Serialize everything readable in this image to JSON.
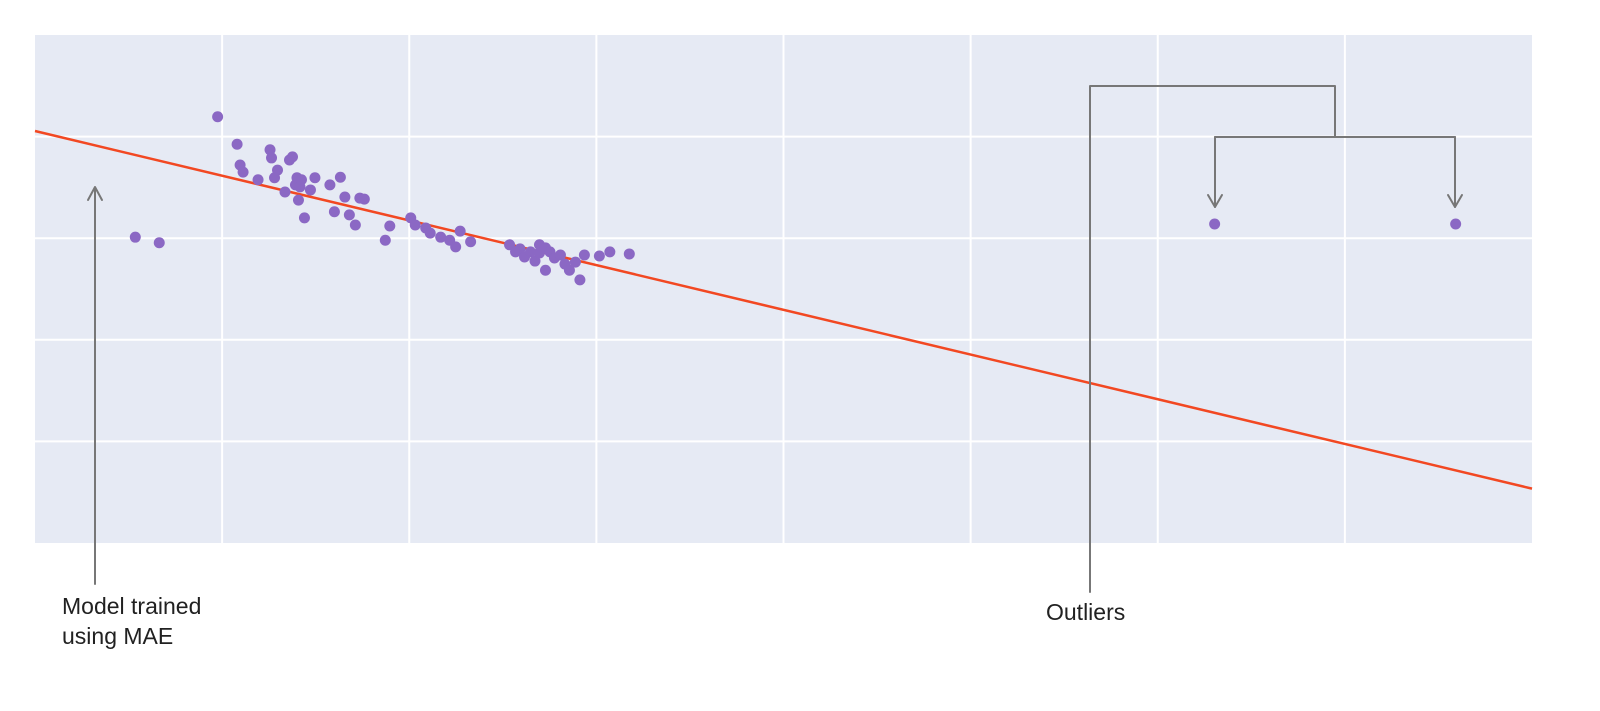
{
  "chart_data": {
    "type": "scatter",
    "title": "",
    "coordinate_note": "No axis ticks, tick labels or axis titles are visible in the figure; point coordinates below are expressed as percent of the plot area (x: 0 = left edge to 100 = right edge, y: 0 = bottom edge to 100 = top edge).",
    "x_axis": {
      "label": "",
      "tick_labels": []
    },
    "y_axis": {
      "label": "",
      "tick_labels": []
    },
    "plot_bg": "#e6eaf4",
    "grid": {
      "on": true,
      "color": "#ffffff",
      "x": [
        12.5,
        25,
        37.5,
        50,
        62.5,
        75,
        87.5
      ],
      "y": [
        20,
        40,
        60,
        80
      ]
    },
    "regression_line": {
      "name": "regression-line",
      "color": "#f24822",
      "from": [
        0,
        81.1
      ],
      "to": [
        100,
        10.7
      ]
    },
    "series": [
      {
        "name": "scatter-point",
        "color": "#8b68c4",
        "radius": 5.5,
        "points": [
          [
            12.2,
            83.9
          ],
          [
            6.7,
            60.2
          ],
          [
            8.3,
            59.1
          ],
          [
            13.5,
            78.5
          ],
          [
            13.7,
            74.4
          ],
          [
            13.9,
            73.0
          ],
          [
            14.9,
            71.5
          ],
          [
            15.7,
            77.4
          ],
          [
            15.8,
            75.8
          ],
          [
            16.0,
            71.9
          ],
          [
            16.2,
            73.4
          ],
          [
            16.7,
            69.1
          ],
          [
            17.0,
            75.4
          ],
          [
            17.2,
            76.0
          ],
          [
            17.4,
            70.5
          ],
          [
            17.5,
            71.9
          ],
          [
            17.6,
            67.5
          ],
          [
            17.7,
            70.1
          ],
          [
            17.8,
            71.5
          ],
          [
            18.0,
            64.0
          ],
          [
            18.4,
            69.5
          ],
          [
            18.7,
            71.9
          ],
          [
            19.7,
            70.5
          ],
          [
            20.0,
            65.2
          ],
          [
            20.4,
            72.0
          ],
          [
            20.7,
            68.1
          ],
          [
            21.0,
            64.6
          ],
          [
            21.4,
            62.6
          ],
          [
            21.7,
            67.9
          ],
          [
            22.0,
            67.7
          ],
          [
            23.4,
            59.6
          ],
          [
            23.7,
            62.4
          ],
          [
            25.1,
            64.0
          ],
          [
            25.4,
            62.6
          ],
          [
            26.1,
            62.0
          ],
          [
            26.4,
            61.0
          ],
          [
            27.1,
            60.2
          ],
          [
            27.7,
            59.6
          ],
          [
            28.1,
            58.3
          ],
          [
            28.4,
            61.4
          ],
          [
            29.1,
            59.3
          ],
          [
            31.7,
            58.7
          ],
          [
            32.1,
            57.3
          ],
          [
            32.4,
            57.9
          ],
          [
            32.7,
            56.3
          ],
          [
            33.1,
            57.3
          ],
          [
            33.4,
            55.5
          ],
          [
            33.7,
            58.7
          ],
          [
            33.7,
            57.1
          ],
          [
            34.1,
            58.1
          ],
          [
            34.1,
            53.7
          ],
          [
            34.4,
            57.3
          ],
          [
            34.7,
            56.1
          ],
          [
            35.1,
            56.7
          ],
          [
            35.4,
            54.9
          ],
          [
            35.7,
            53.7
          ],
          [
            36.1,
            55.3
          ],
          [
            36.4,
            51.8
          ],
          [
            36.7,
            56.7
          ],
          [
            37.7,
            56.5
          ],
          [
            38.4,
            57.3
          ],
          [
            39.7,
            56.9
          ]
        ]
      },
      {
        "name": "outlier-point",
        "color": "#8b68c4",
        "radius": 5.5,
        "points": [
          [
            78.8,
            62.8
          ],
          [
            94.9,
            62.8
          ]
        ]
      }
    ],
    "legend": {
      "visible": false
    }
  },
  "annotations": {
    "line_color": "#777777",
    "mae": {
      "label": "Model trained\nusing MAE"
    },
    "outliers": {
      "label": "Outliers"
    }
  }
}
